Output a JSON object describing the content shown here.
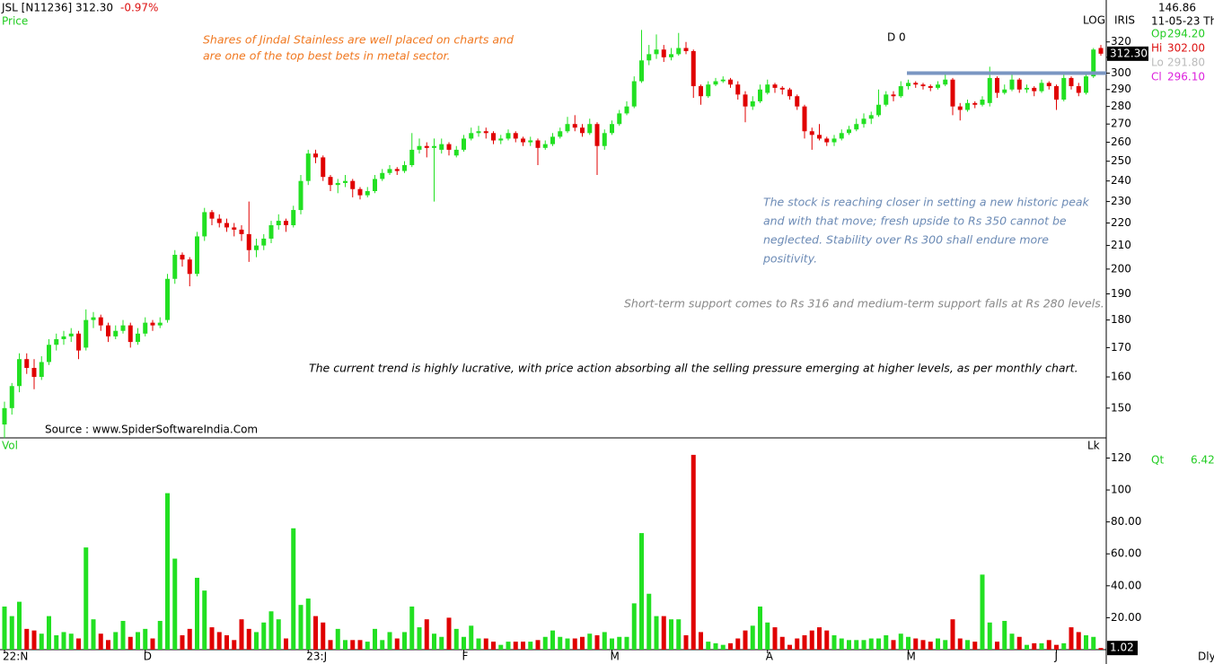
{
  "chart_data": {
    "type": "candlestick",
    "symbol": "JSL [N11236]",
    "price": "312.30",
    "change": "-0.97%",
    "panel_label": "Price",
    "vol_label": "Vol",
    "vol_unit": "Lk",
    "d_label": "D 0",
    "log_label": "LOG",
    "iris_label": "IRIS",
    "info_top": "146.86",
    "info_date": "11-05-23 Th",
    "info": [
      {
        "label": "Op",
        "value": "294.20",
        "color": "#22cc22"
      },
      {
        "label": "Hi",
        "value": "302.00",
        "color": "#dd1111"
      },
      {
        "label": "Lo",
        "value": "291.80",
        "color": "#bbbbbb"
      },
      {
        "label": "Cl",
        "value": "296.10",
        "color": "#dd22dd"
      }
    ],
    "qt_label": "Qt",
    "qt_value": "6.42",
    "period": "Dly",
    "source": "Source : www.SpiderSoftwareIndia.Com",
    "annotations": [
      "Shares of Jindal Stainless are well placed on charts and",
      "are one of the top best bets in metal sector.",
      "The stock is reaching closer in setting a new historic peak",
      "and with that move; fresh upside to Rs 350 cannot be",
      "neglected. Stability over Rs 300 shall endure more",
      "positivity.",
      "Short-term support comes to Rs 316 and medium-term support falls at Rs 280 levels.",
      "The current trend is highly lucrative, with price action absorbing all the selling pressure emerging at higher levels, as per monthly chart."
    ],
    "log": true,
    "up_color": "#22e022",
    "down_color": "#e00000",
    "hline": {
      "value": 300,
      "color": "#7a96c2"
    },
    "ylim": [
      141.3,
      349
    ],
    "yticks": [
      150,
      160,
      170,
      180,
      190,
      200,
      210,
      220,
      230,
      240,
      250,
      260,
      270,
      280,
      290,
      300,
      310,
      320
    ],
    "vol_ylim": [
      0,
      131.5
    ],
    "vol_yticks": [
      {
        "value": 20,
        "label": "20.00"
      },
      {
        "value": 40,
        "label": "40.00"
      },
      {
        "value": 60,
        "label": "60.00"
      },
      {
        "value": 80,
        "label": "80.00"
      },
      100,
      120
    ],
    "categories": [
      "22:N",
      null,
      null,
      null,
      null,
      null,
      null,
      null,
      null,
      null,
      null,
      null,
      null,
      null,
      null,
      null,
      null,
      null,
      null,
      "D",
      null,
      null,
      null,
      null,
      null,
      null,
      null,
      null,
      null,
      null,
      null,
      null,
      null,
      null,
      null,
      null,
      null,
      null,
      null,
      null,
      null,
      "23:J",
      null,
      null,
      null,
      null,
      null,
      null,
      null,
      null,
      null,
      null,
      null,
      null,
      null,
      null,
      null,
      null,
      null,
      null,
      null,
      null,
      "F",
      null,
      null,
      null,
      null,
      null,
      null,
      null,
      null,
      null,
      null,
      null,
      null,
      null,
      null,
      null,
      null,
      null,
      null,
      null,
      "M",
      null,
      null,
      null,
      null,
      null,
      null,
      null,
      null,
      null,
      null,
      null,
      null,
      null,
      null,
      null,
      null,
      null,
      null,
      null,
      null,
      "A",
      null,
      null,
      null,
      null,
      null,
      null,
      null,
      null,
      null,
      null,
      null,
      null,
      null,
      null,
      null,
      null,
      null,
      null,
      "M",
      null,
      null,
      null,
      null,
      null,
      null,
      null,
      null,
      null,
      null,
      null,
      null,
      null,
      null,
      null,
      null,
      null,
      null,
      null,
      "J",
      null,
      null,
      null,
      null,
      null,
      null
    ],
    "ohlc": [
      [
        145,
        152,
        141,
        150
      ],
      [
        150,
        158,
        148,
        157
      ],
      [
        157,
        168,
        155,
        166
      ],
      [
        166,
        168,
        161,
        163
      ],
      [
        163,
        166,
        156,
        160
      ],
      [
        160,
        167,
        159,
        165
      ],
      [
        165,
        173,
        164,
        171
      ],
      [
        171,
        175,
        169,
        173
      ],
      [
        173,
        176,
        171,
        174
      ],
      [
        174,
        177,
        172,
        175
      ],
      [
        175,
        176,
        166,
        169
      ],
      [
        170,
        184,
        169,
        180
      ],
      [
        180,
        183,
        177,
        181
      ],
      [
        181,
        182,
        176,
        178
      ],
      [
        178,
        179,
        172,
        174
      ],
      [
        174,
        178,
        173,
        176
      ],
      [
        176,
        180,
        175,
        178
      ],
      [
        178,
        179,
        170,
        172
      ],
      [
        172,
        177,
        171,
        175
      ],
      [
        175,
        181,
        174,
        179
      ],
      [
        179,
        180,
        176,
        178
      ],
      [
        178,
        181,
        177,
        179
      ],
      [
        180,
        198,
        179,
        196
      ],
      [
        196,
        208,
        194,
        206
      ],
      [
        206,
        207,
        201,
        204
      ],
      [
        204,
        205,
        193,
        198
      ],
      [
        198,
        216,
        197,
        214
      ],
      [
        214,
        227,
        212,
        225
      ],
      [
        225,
        226,
        219,
        222
      ],
      [
        222,
        224,
        218,
        220
      ],
      [
        220,
        222,
        216,
        218
      ],
      [
        218,
        220,
        214,
        217
      ],
      [
        217,
        219,
        212,
        215
      ],
      [
        215,
        230,
        203,
        208
      ],
      [
        208,
        213,
        205,
        210
      ],
      [
        210,
        215,
        208,
        213
      ],
      [
        213,
        221,
        211,
        219
      ],
      [
        219,
        224,
        217,
        221
      ],
      [
        221,
        222,
        216,
        219
      ],
      [
        219,
        228,
        218,
        226
      ],
      [
        226,
        243,
        224,
        240
      ],
      [
        240,
        256,
        238,
        254
      ],
      [
        254,
        256,
        249,
        252
      ],
      [
        252,
        253,
        240,
        242
      ],
      [
        242,
        243,
        235,
        238
      ],
      [
        238,
        241,
        234,
        239
      ],
      [
        239,
        243,
        237,
        240
      ],
      [
        240,
        241,
        232,
        236
      ],
      [
        236,
        237,
        231,
        233
      ],
      [
        233,
        237,
        232,
        235
      ],
      [
        235,
        243,
        234,
        241
      ],
      [
        241,
        246,
        240,
        244
      ],
      [
        244,
        248,
        243,
        246
      ],
      [
        246,
        247,
        243,
        245
      ],
      [
        245,
        250,
        244,
        248
      ],
      [
        248,
        265,
        247,
        256
      ],
      [
        256,
        262,
        254,
        258
      ],
      [
        258,
        260,
        252,
        257
      ],
      [
        257,
        262,
        230,
        258
      ],
      [
        256,
        262,
        254,
        259
      ],
      [
        259,
        260,
        253,
        256
      ],
      [
        253,
        258,
        252,
        256
      ],
      [
        256,
        264,
        255,
        262
      ],
      [
        262,
        268,
        261,
        265
      ],
      [
        265,
        269,
        263,
        266
      ],
      [
        266,
        268,
        262,
        265
      ],
      [
        265,
        266,
        259,
        261
      ],
      [
        261,
        264,
        259,
        262
      ],
      [
        262,
        267,
        261,
        265
      ],
      [
        265,
        266,
        260,
        262
      ],
      [
        262,
        263,
        258,
        260
      ],
      [
        260,
        263,
        258,
        261
      ],
      [
        261,
        262,
        248,
        257
      ],
      [
        257,
        261,
        256,
        259
      ],
      [
        259,
        265,
        258,
        263
      ],
      [
        263,
        268,
        262,
        266
      ],
      [
        266,
        274,
        265,
        270
      ],
      [
        270,
        275,
        266,
        268
      ],
      [
        268,
        270,
        263,
        265
      ],
      [
        265,
        273,
        264,
        270
      ],
      [
        270,
        271,
        243,
        258
      ],
      [
        258,
        267,
        256,
        265
      ],
      [
        265,
        272,
        264,
        270
      ],
      [
        270,
        278,
        269,
        276
      ],
      [
        276,
        283,
        275,
        280
      ],
      [
        280,
        298,
        279,
        295
      ],
      [
        295,
        328,
        294,
        308
      ],
      [
        308,
        318,
        305,
        312
      ],
      [
        312,
        325,
        309,
        315
      ],
      [
        315,
        318,
        307,
        310
      ],
      [
        310,
        316,
        308,
        312
      ],
      [
        312,
        326,
        311,
        316
      ],
      [
        316,
        320,
        312,
        314
      ],
      [
        314,
        315,
        285,
        292
      ],
      [
        292,
        293,
        281,
        286
      ],
      [
        286,
        295,
        285,
        293
      ],
      [
        293,
        297,
        292,
        295
      ],
      [
        295,
        298,
        294,
        296
      ],
      [
        296,
        297,
        291,
        293
      ],
      [
        293,
        295,
        284,
        287
      ],
      [
        287,
        289,
        271,
        280
      ],
      [
        280,
        286,
        278,
        283
      ],
      [
        283,
        293,
        282,
        290
      ],
      [
        288,
        296,
        287,
        293
      ],
      [
        293,
        294,
        288,
        291
      ],
      [
        291,
        292,
        287,
        290
      ],
      [
        290,
        291,
        284,
        286
      ],
      [
        286,
        287,
        278,
        280
      ],
      [
        280,
        281,
        262,
        266
      ],
      [
        266,
        268,
        256,
        264
      ],
      [
        264,
        270,
        261,
        262
      ],
      [
        262,
        263,
        258,
        260
      ],
      [
        260,
        264,
        258,
        262
      ],
      [
        262,
        267,
        261,
        265
      ],
      [
        265,
        269,
        264,
        267
      ],
      [
        267,
        273,
        266,
        270
      ],
      [
        270,
        276,
        268,
        273
      ],
      [
        273,
        277,
        270,
        275
      ],
      [
        275,
        290,
        274,
        281
      ],
      [
        281,
        289,
        280,
        287
      ],
      [
        287,
        289,
        283,
        286
      ],
      [
        286,
        295,
        285,
        292
      ],
      [
        292,
        296,
        290,
        294
      ],
      [
        294,
        295,
        291,
        293
      ],
      [
        293,
        294,
        290,
        292
      ],
      [
        292,
        293,
        289,
        291
      ],
      [
        291,
        295,
        290,
        293
      ],
      [
        293,
        301,
        292,
        296
      ],
      [
        296,
        297,
        275,
        280
      ],
      [
        280,
        282,
        272,
        278
      ],
      [
        278,
        284,
        277,
        282
      ],
      [
        282,
        283,
        279,
        281
      ],
      [
        281,
        286,
        280,
        284
      ],
      [
        282,
        304,
        280,
        297
      ],
      [
        297,
        298,
        285,
        288
      ],
      [
        288,
        293,
        287,
        290
      ],
      [
        290,
        299,
        289,
        296
      ],
      [
        296,
        297,
        288,
        290
      ],
      [
        290,
        293,
        288,
        291
      ],
      [
        291,
        292,
        286,
        289
      ],
      [
        289,
        296,
        288,
        294
      ],
      [
        294,
        295,
        290,
        292
      ],
      [
        292,
        293,
        278,
        284
      ],
      [
        284,
        299,
        283,
        297
      ],
      [
        297,
        298,
        290,
        292
      ],
      [
        292,
        294,
        286,
        288
      ],
      [
        288,
        300,
        287,
        298
      ],
      [
        298,
        316,
        297,
        315
      ],
      [
        316,
        318,
        311,
        312.3
      ]
    ],
    "volumes": [
      27,
      21,
      30,
      13,
      12,
      10,
      21,
      9,
      11,
      10,
      7,
      64,
      19,
      10,
      6,
      11,
      18,
      8,
      11,
      13,
      7,
      18,
      98,
      57,
      9,
      13,
      45,
      37,
      14,
      11,
      9,
      6,
      19,
      13,
      11,
      17,
      24,
      19,
      7,
      76,
      28,
      32,
      21,
      17,
      6,
      13,
      6,
      6,
      6,
      5,
      13,
      6,
      11,
      7,
      11,
      27,
      14,
      19,
      10,
      8,
      20,
      13,
      8,
      15,
      7,
      7,
      5,
      3,
      5,
      5,
      5,
      5,
      6,
      8,
      12,
      8,
      7,
      7,
      8,
      10,
      9,
      11,
      7,
      8,
      8,
      29,
      73,
      35,
      21,
      21,
      19,
      19,
      9,
      122,
      11,
      5,
      4,
      3,
      4,
      7,
      12,
      15,
      27,
      17,
      14,
      8,
      3,
      7,
      9,
      12,
      14,
      12,
      9,
      7,
      6,
      6,
      6,
      7,
      7,
      9,
      6,
      10,
      8,
      7,
      6,
      5,
      7,
      6,
      19,
      7,
      6,
      5,
      47,
      17,
      5,
      18,
      10,
      8,
      3,
      4,
      4,
      6,
      3,
      4,
      14,
      11,
      9,
      8,
      1.02
    ]
  }
}
